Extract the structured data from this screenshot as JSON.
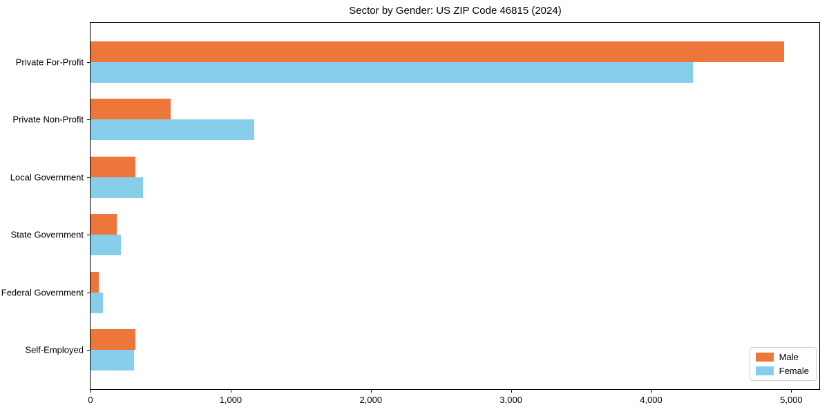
{
  "chart_data": {
    "type": "bar",
    "orientation": "horizontal",
    "title": "Sector by Gender: US ZIP Code 46815 (2024)",
    "categories": [
      "Private For-Profit",
      "Private Non-Profit",
      "Local Government",
      "State Government",
      "Federal Government",
      "Self-Employed"
    ],
    "series": [
      {
        "name": "Male",
        "color": "#ed763a",
        "values": [
          4950,
          570,
          320,
          185,
          60,
          320
        ]
      },
      {
        "name": "Female",
        "color": "#87ceeb",
        "values": [
          4300,
          1170,
          375,
          215,
          90,
          310
        ]
      }
    ],
    "xlim": [
      0,
      5200
    ],
    "xticks": [
      0,
      1000,
      2000,
      3000,
      4000,
      5000
    ],
    "xtick_labels": [
      "0",
      "1,000",
      "2,000",
      "3,000",
      "4,000",
      "5,000"
    ],
    "xlabel": "",
    "ylabel": "",
    "grid": false,
    "legend_position": "lower right",
    "axis_color": "#000000",
    "background_color": "#ffffff"
  }
}
